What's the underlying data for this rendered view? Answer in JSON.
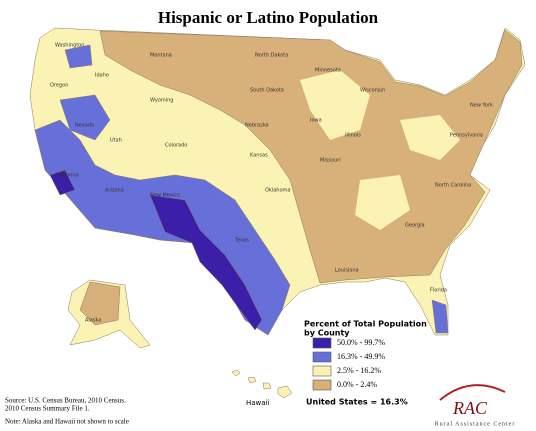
{
  "title": "Hispanic or Latino Population",
  "legend": {
    "title": [
      "Percent of Total Population",
      "by County"
    ],
    "items": [
      {
        "label": "50.0% - 99.7%",
        "color": "#3b1fa8"
      },
      {
        "label": "16.3% - 49.9%",
        "color": "#6670d8"
      },
      {
        "label": "2.5% - 16.2%",
        "color": "#fbf3b4"
      },
      {
        "label": "0.0% - 2.4%",
        "color": "#d8b07a"
      }
    ]
  },
  "summary": "United States = 16.3%",
  "source": [
    "Source: U.S. Census Bureau, 2010 Census.",
    "2010 Census Summary File 1."
  ],
  "note": "Note: Alaska and Hawaii not shown to scale",
  "map_labels": {
    "alaska": "Alaska",
    "hawaii": "Hawaii",
    "states": [
      "Washington",
      "Oregon",
      "Idaho",
      "Montana",
      "Wyoming",
      "Nevada",
      "Utah",
      "California",
      "Arizona",
      "Colorado",
      "New Mexico",
      "North Dakota",
      "South Dakota",
      "Nebraska",
      "Kansas",
      "Oklahoma",
      "Texas",
      "Minnesota",
      "Iowa",
      "Missouri",
      "Wisconsin",
      "Illinois",
      "Louisiana",
      "Georgia",
      "Florida",
      "North Carolina",
      "Pennsylvania",
      "New York"
    ]
  },
  "logo": {
    "name": "RAC",
    "subtitle": "Rural Assistance Center"
  }
}
